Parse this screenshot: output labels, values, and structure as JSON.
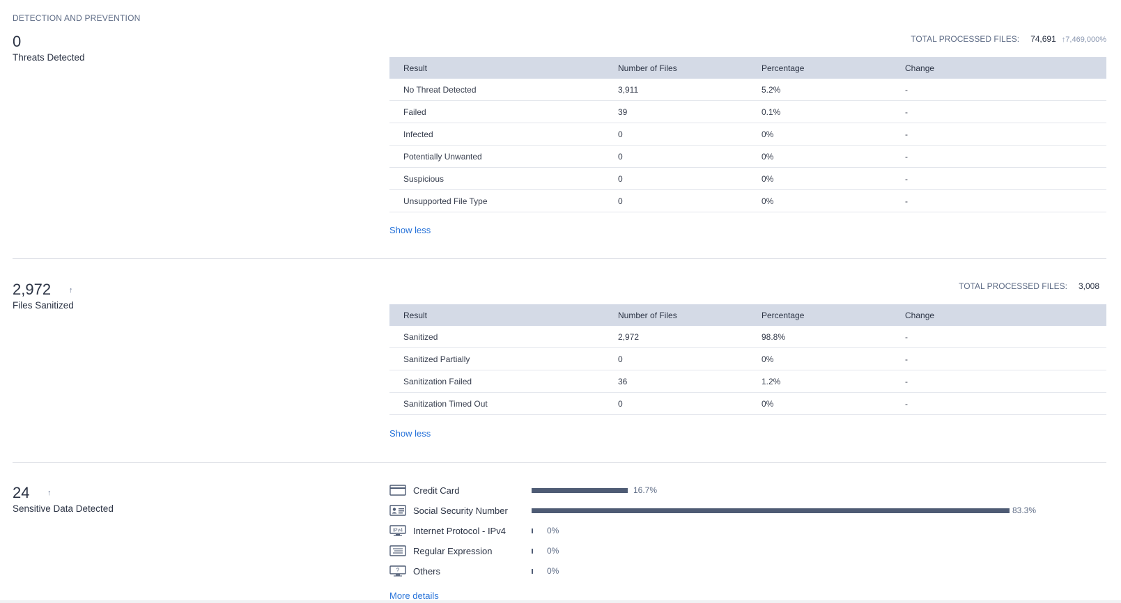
{
  "section_title": "DETECTION AND PREVENTION",
  "threats": {
    "count": "0",
    "label": "Threats Detected",
    "total_label": "TOTAL PROCESSED FILES:",
    "total_value": "74,691",
    "total_change": "↑7,469,000%",
    "columns": [
      "Result",
      "Number of Files",
      "Percentage",
      "Change"
    ],
    "rows": [
      [
        "No Threat Detected",
        "3,911",
        "5.2%",
        "-"
      ],
      [
        "Failed",
        "39",
        "0.1%",
        "-"
      ],
      [
        "Infected",
        "0",
        "0%",
        "-"
      ],
      [
        "Potentially Unwanted",
        "0",
        "0%",
        "-"
      ],
      [
        "Suspicious",
        "0",
        "0%",
        "-"
      ],
      [
        "Unsupported File Type",
        "0",
        "0%",
        "-"
      ]
    ],
    "link": "Show less"
  },
  "sanitized": {
    "count": "2,972",
    "arrow": "↑",
    "label": "Files Sanitized",
    "total_label": "TOTAL PROCESSED FILES:",
    "total_value": "3,008",
    "columns": [
      "Result",
      "Number of Files",
      "Percentage",
      "Change"
    ],
    "rows": [
      [
        "Sanitized",
        "2,972",
        "98.8%",
        "-"
      ],
      [
        "Sanitized Partially",
        "0",
        "0%",
        "-"
      ],
      [
        "Sanitization Failed",
        "36",
        "1.2%",
        "-"
      ],
      [
        "Sanitization Timed Out",
        "0",
        "0%",
        "-"
      ]
    ],
    "link": "Show less"
  },
  "sensitive": {
    "count": "24",
    "arrow": "↑",
    "label": "Sensitive Data Detected",
    "items": [
      {
        "icon": "credit-card-icon",
        "label": "Credit Card",
        "pct": "16.7%",
        "value": 16.7
      },
      {
        "icon": "id-card-icon",
        "label": "Social Security Number",
        "pct": "83.3%",
        "value": 83.3
      },
      {
        "icon": "ipv4-icon",
        "label": "Internet Protocol - IPv4",
        "pct": "0%",
        "value": 0
      },
      {
        "icon": "regex-icon",
        "label": "Regular Expression",
        "pct": "0%",
        "value": 0
      },
      {
        "icon": "others-monitor-icon",
        "label": "Others",
        "pct": "0%",
        "value": 0
      }
    ],
    "link": "More details"
  }
}
